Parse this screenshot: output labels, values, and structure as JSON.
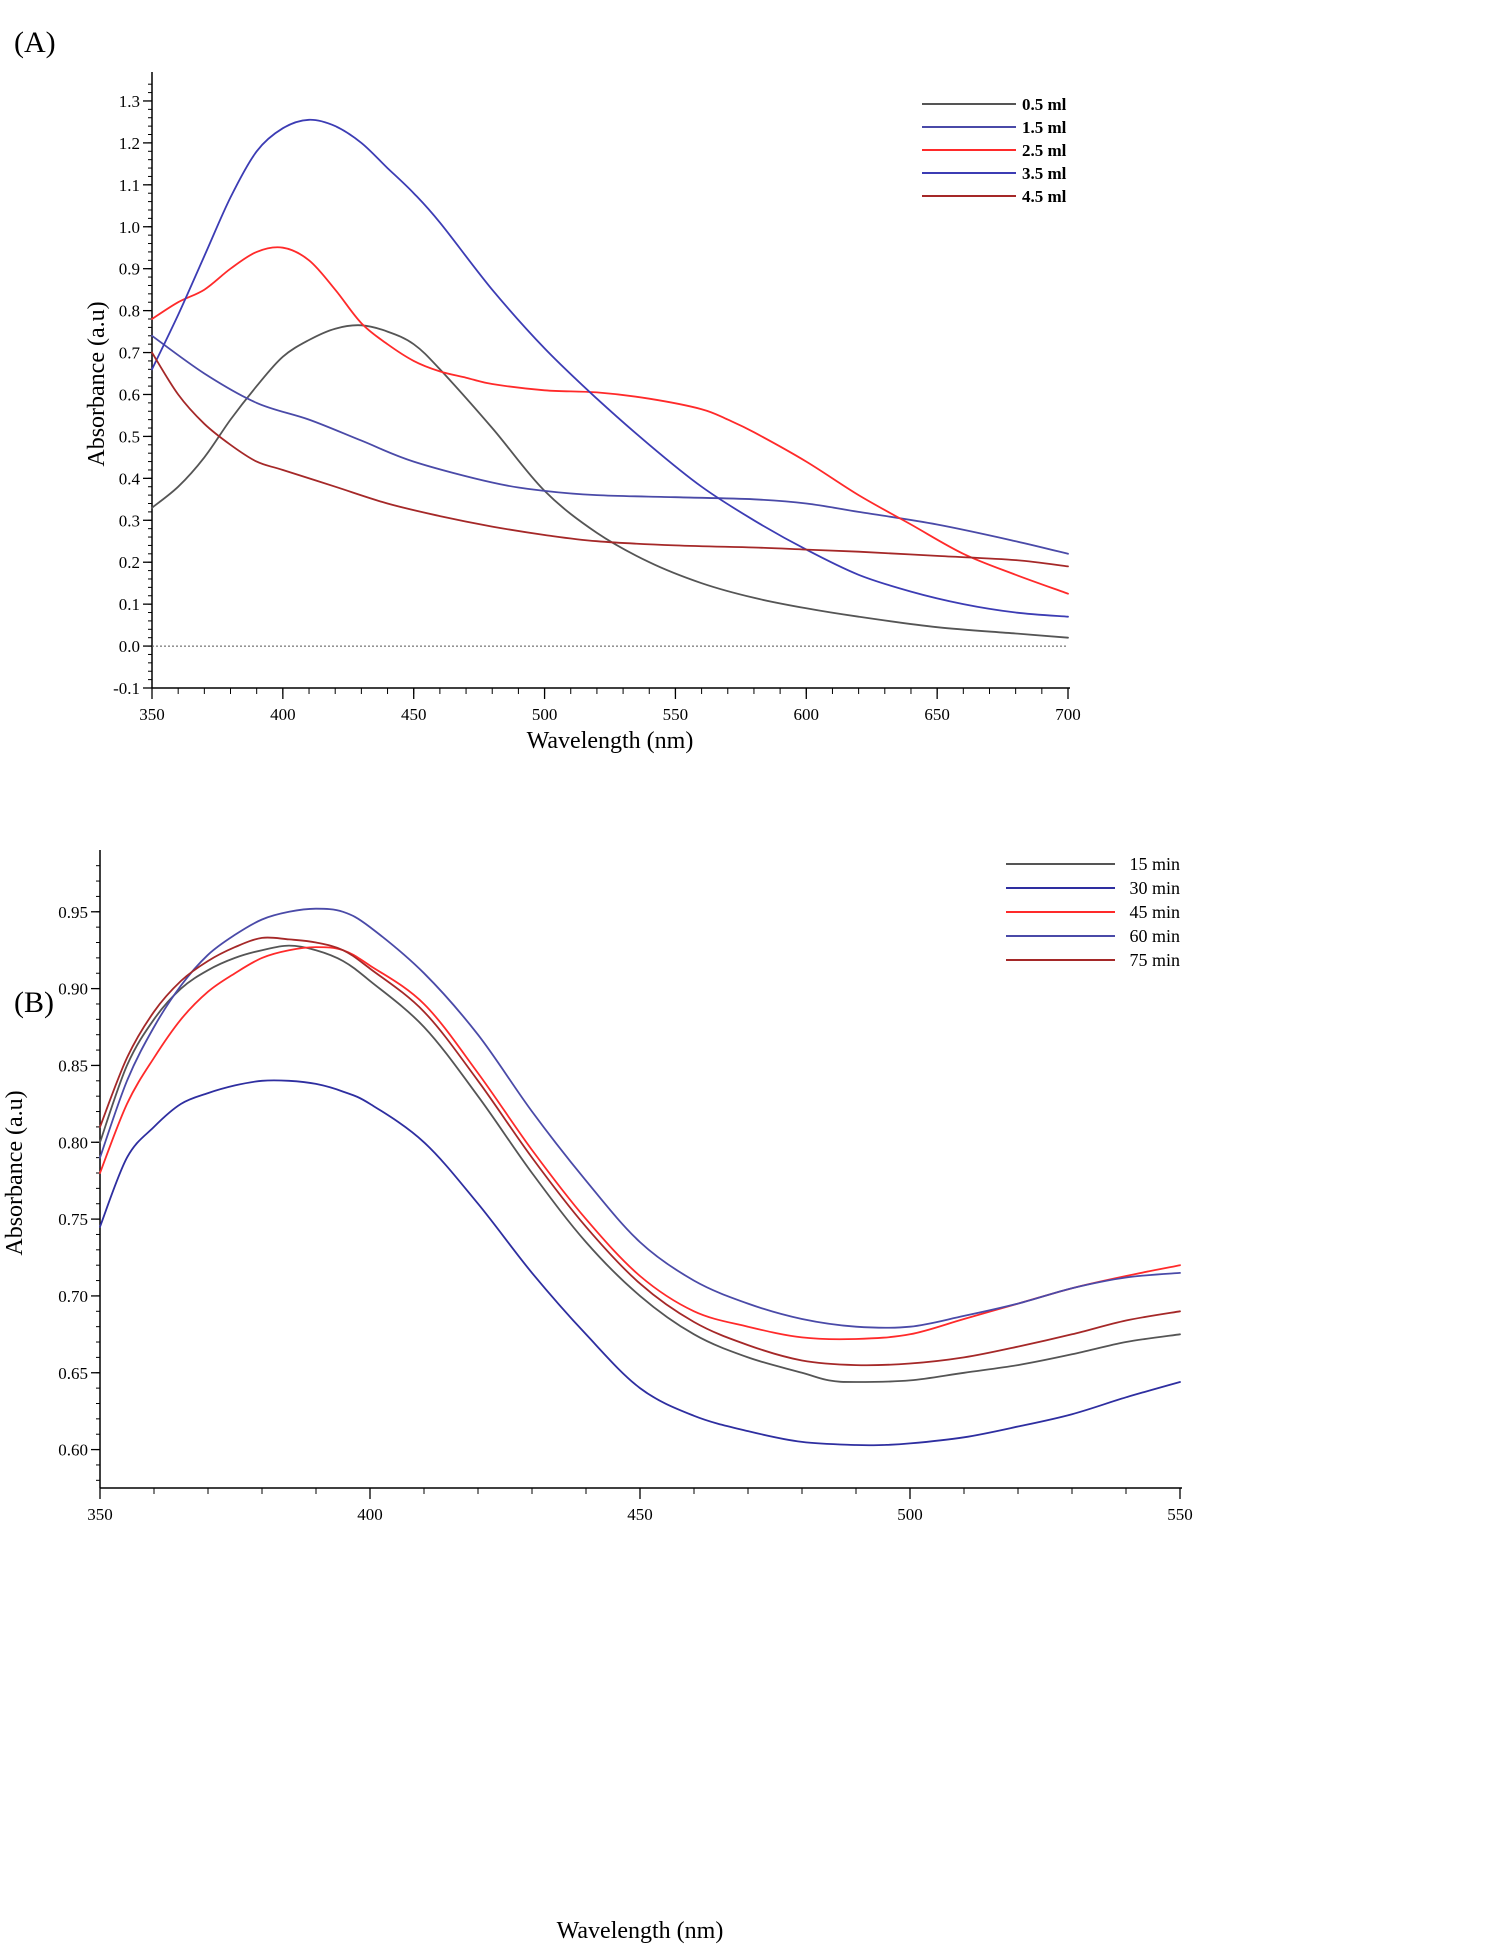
{
  "chart_data": [
    {
      "panel": "(A)",
      "type": "line",
      "title": "",
      "xlabel": "Wavelength (nm)",
      "ylabel": "Absorbance (a.u)",
      "xlim": [
        350,
        700
      ],
      "ylim": [
        -0.1,
        1.35
      ],
      "xticks": [
        "350",
        "400",
        "450",
        "500",
        "550",
        "600",
        "650",
        "700"
      ],
      "yticks": [
        "-0.1",
        "0.0",
        "0.1",
        "0.2",
        "0.3",
        "0.4",
        "0.5",
        "0.6",
        "0.7",
        "0.8",
        "0.9",
        "1.0",
        "1.1",
        "1.2",
        "1.3"
      ],
      "legend_position": "top-right",
      "baseline": 0.0,
      "series": [
        {
          "name": "0.5 ml",
          "color": "#555555",
          "x": [
            350,
            360,
            370,
            380,
            390,
            400,
            410,
            420,
            430,
            440,
            450,
            460,
            480,
            500,
            520,
            540,
            560,
            580,
            600,
            620,
            650,
            680,
            700
          ],
          "y": [
            0.33,
            0.38,
            0.45,
            0.54,
            0.62,
            0.69,
            0.73,
            0.757,
            0.765,
            0.75,
            0.72,
            0.66,
            0.52,
            0.37,
            0.27,
            0.2,
            0.15,
            0.115,
            0.09,
            0.07,
            0.045,
            0.03,
            0.02
          ]
        },
        {
          "name": "1.5 ml",
          "color": "#4a4aa8",
          "x": [
            350,
            370,
            390,
            410,
            430,
            450,
            480,
            500,
            520,
            550,
            580,
            600,
            620,
            650,
            680,
            700
          ],
          "y": [
            0.74,
            0.65,
            0.58,
            0.54,
            0.49,
            0.44,
            0.39,
            0.37,
            0.36,
            0.355,
            0.35,
            0.34,
            0.32,
            0.29,
            0.25,
            0.22
          ]
        },
        {
          "name": "2.5 ml",
          "color": "#ff2a2a",
          "x": [
            350,
            360,
            370,
            380,
            390,
            400,
            410,
            420,
            430,
            440,
            450,
            460,
            470,
            480,
            500,
            520,
            540,
            560,
            570,
            580,
            600,
            620,
            640,
            660,
            680,
            700
          ],
          "y": [
            0.78,
            0.82,
            0.85,
            0.9,
            0.94,
            0.95,
            0.92,
            0.85,
            0.77,
            0.72,
            0.68,
            0.655,
            0.64,
            0.625,
            0.61,
            0.605,
            0.59,
            0.565,
            0.54,
            0.51,
            0.44,
            0.36,
            0.29,
            0.22,
            0.17,
            0.125
          ]
        },
        {
          "name": "3.5 ml",
          "color": "#3c3cb4",
          "x": [
            350,
            360,
            370,
            380,
            390,
            400,
            410,
            420,
            430,
            440,
            450,
            460,
            480,
            500,
            520,
            540,
            560,
            580,
            600,
            620,
            640,
            660,
            680,
            700
          ],
          "y": [
            0.66,
            0.79,
            0.93,
            1.07,
            1.18,
            1.235,
            1.255,
            1.24,
            1.2,
            1.14,
            1.08,
            1.01,
            0.85,
            0.71,
            0.59,
            0.48,
            0.38,
            0.3,
            0.23,
            0.17,
            0.13,
            0.1,
            0.08,
            0.07
          ]
        },
        {
          "name": "4.5 ml",
          "color": "#a52828",
          "x": [
            350,
            360,
            370,
            380,
            390,
            400,
            420,
            440,
            460,
            480,
            500,
            520,
            550,
            580,
            600,
            620,
            650,
            680,
            700
          ],
          "y": [
            0.7,
            0.6,
            0.53,
            0.48,
            0.44,
            0.42,
            0.38,
            0.34,
            0.31,
            0.285,
            0.265,
            0.25,
            0.24,
            0.235,
            0.23,
            0.225,
            0.215,
            0.205,
            0.19
          ]
        }
      ]
    },
    {
      "panel": "(B)",
      "type": "line",
      "title": "",
      "xlabel": "Wavelength (nm)",
      "ylabel": "Absorbance (a.u)",
      "xlim": [
        350,
        550
      ],
      "ylim": [
        0.575,
        0.985
      ],
      "xticks": [
        "350",
        "400",
        "450",
        "500",
        "550"
      ],
      "yticks": [
        "0.60",
        "0.65",
        "0.70",
        "0.75",
        "0.80",
        "0.85",
        "0.90",
        "0.95"
      ],
      "legend_position": "top-right",
      "series": [
        {
          "name": "15 min",
          "color": "#555555",
          "x": [
            350,
            355,
            360,
            365,
            370,
            375,
            380,
            385,
            390,
            395,
            400,
            410,
            420,
            430,
            440,
            450,
            460,
            470,
            480,
            485,
            490,
            500,
            510,
            520,
            530,
            540,
            550
          ],
          "y": [
            0.8,
            0.85,
            0.88,
            0.9,
            0.912,
            0.92,
            0.925,
            0.928,
            0.925,
            0.918,
            0.905,
            0.875,
            0.83,
            0.78,
            0.735,
            0.7,
            0.675,
            0.66,
            0.65,
            0.645,
            0.644,
            0.645,
            0.65,
            0.655,
            0.662,
            0.67,
            0.675
          ]
        },
        {
          "name": "30 min",
          "color": "#2e2ea0",
          "x": [
            350,
            355,
            360,
            365,
            370,
            375,
            380,
            385,
            390,
            395,
            400,
            410,
            420,
            430,
            440,
            450,
            460,
            470,
            480,
            490,
            495,
            500,
            510,
            520,
            530,
            540,
            550
          ],
          "y": [
            0.745,
            0.79,
            0.81,
            0.825,
            0.832,
            0.837,
            0.84,
            0.84,
            0.838,
            0.833,
            0.825,
            0.8,
            0.76,
            0.715,
            0.675,
            0.64,
            0.622,
            0.612,
            0.605,
            0.603,
            0.603,
            0.604,
            0.608,
            0.615,
            0.623,
            0.634,
            0.644
          ]
        },
        {
          "name": "45 min",
          "color": "#ff2a2a",
          "x": [
            350,
            355,
            360,
            365,
            370,
            375,
            380,
            385,
            390,
            395,
            400,
            410,
            420,
            430,
            440,
            450,
            460,
            470,
            480,
            490,
            500,
            510,
            520,
            530,
            540,
            550
          ],
          "y": [
            0.78,
            0.825,
            0.855,
            0.88,
            0.898,
            0.91,
            0.92,
            0.925,
            0.927,
            0.925,
            0.915,
            0.89,
            0.845,
            0.795,
            0.75,
            0.713,
            0.69,
            0.68,
            0.673,
            0.672,
            0.675,
            0.685,
            0.695,
            0.705,
            0.713,
            0.72
          ]
        },
        {
          "name": "60 min",
          "color": "#4a4aa8",
          "x": [
            350,
            355,
            360,
            365,
            370,
            375,
            380,
            385,
            390,
            395,
            400,
            410,
            420,
            430,
            440,
            450,
            460,
            470,
            480,
            490,
            500,
            510,
            520,
            530,
            540,
            550
          ],
          "y": [
            0.79,
            0.84,
            0.875,
            0.902,
            0.922,
            0.935,
            0.945,
            0.95,
            0.952,
            0.95,
            0.94,
            0.91,
            0.87,
            0.82,
            0.775,
            0.735,
            0.71,
            0.695,
            0.685,
            0.68,
            0.68,
            0.687,
            0.695,
            0.705,
            0.712,
            0.715
          ]
        },
        {
          "name": "75 min",
          "color": "#a52828",
          "x": [
            350,
            355,
            360,
            365,
            370,
            375,
            380,
            385,
            390,
            395,
            400,
            410,
            420,
            430,
            440,
            450,
            460,
            470,
            480,
            490,
            500,
            510,
            520,
            530,
            540,
            550
          ],
          "y": [
            0.81,
            0.855,
            0.885,
            0.905,
            0.918,
            0.927,
            0.933,
            0.932,
            0.93,
            0.925,
            0.913,
            0.885,
            0.84,
            0.79,
            0.745,
            0.708,
            0.683,
            0.668,
            0.658,
            0.655,
            0.656,
            0.66,
            0.667,
            0.675,
            0.684,
            0.69
          ]
        }
      ]
    }
  ]
}
